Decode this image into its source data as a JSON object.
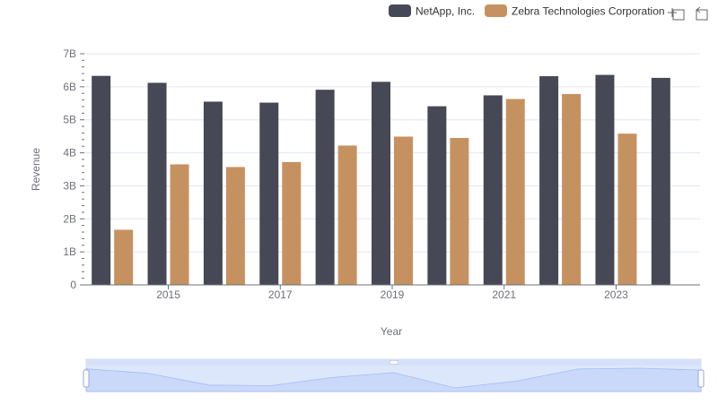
{
  "chart_data": {
    "type": "bar",
    "x": [
      2014,
      2015,
      2016,
      2017,
      2018,
      2019,
      2020,
      2021,
      2022,
      2023,
      2024
    ],
    "xticks": [
      "2015",
      "2017",
      "2019",
      "2021",
      "2023"
    ],
    "series": [
      {
        "name": "NetApp, Inc.",
        "color": "#474856",
        "values": [
          6.33,
          6.12,
          5.55,
          5.52,
          5.91,
          6.15,
          5.41,
          5.74,
          6.32,
          6.36,
          6.27
        ]
      },
      {
        "name": "Zebra Technologies Corporation",
        "color": "#c69161",
        "values": [
          1.67,
          3.65,
          3.57,
          3.72,
          4.22,
          4.49,
          4.45,
          5.63,
          5.78,
          4.58,
          null
        ]
      }
    ],
    "yticks": [
      "0",
      "1B",
      "2B",
      "3B",
      "4B",
      "5B",
      "6B",
      "7B"
    ],
    "ylim": [
      0,
      7
    ],
    "xlabel": "Year",
    "ylabel": "Revenue",
    "legend_position": "top-right",
    "grid": true,
    "datazoom": {
      "visible": true,
      "range_percent": [
        0,
        100
      ]
    }
  },
  "toolbar": {
    "icons": [
      "zoom-icon",
      "restore-icon"
    ]
  }
}
